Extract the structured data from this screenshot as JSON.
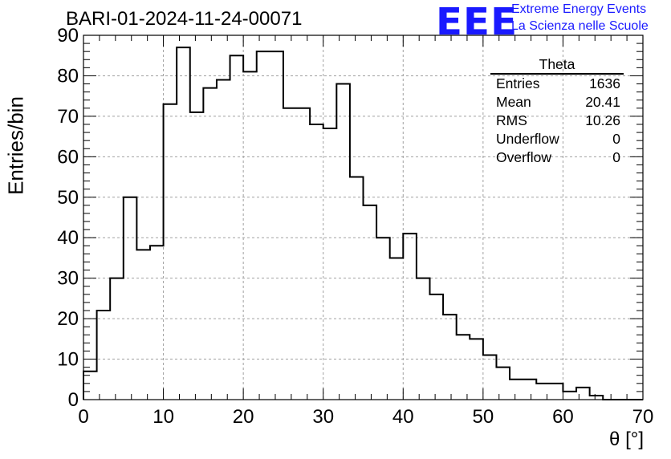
{
  "header": {
    "run_title": "BARI-01-2024-11-24-00071",
    "logo_text": "EEE",
    "logo_line1": "Extreme Energy Events",
    "logo_line2": "La Scienza nelle Scuole",
    "logo_color": "#1a1aff"
  },
  "stats": {
    "title": "Theta",
    "rows": [
      {
        "label": "Entries",
        "value": "1636"
      },
      {
        "label": "Mean",
        "value": "20.41"
      },
      {
        "label": "RMS",
        "value": "10.26"
      },
      {
        "label": "Underflow",
        "value": "0"
      },
      {
        "label": "Overflow",
        "value": "0"
      }
    ]
  },
  "chart_data": {
    "type": "bar",
    "title": "BARI-01-2024-11-24-00071",
    "xlabel": "θ [°]",
    "ylabel": "Entries/bin",
    "xlim": [
      0,
      70
    ],
    "ylim": [
      0,
      90
    ],
    "bin_width": 1.6667,
    "bin_edges_start": 0,
    "values": [
      7,
      22,
      30,
      50,
      37,
      38,
      73,
      87,
      71,
      77,
      79,
      85,
      81,
      86,
      86,
      72,
      72,
      68,
      67,
      78,
      55,
      48,
      40,
      35,
      41,
      30,
      26,
      21,
      16,
      15,
      11,
      8,
      5,
      5,
      4,
      4,
      2,
      3,
      1,
      0,
      0,
      0
    ],
    "x_ticks": [
      "0",
      "10",
      "20",
      "30",
      "40",
      "50",
      "60",
      "70"
    ],
    "y_ticks": [
      "0",
      "10",
      "20",
      "30",
      "40",
      "50",
      "60",
      "70",
      "80",
      "90"
    ],
    "grid": true,
    "grid_style": "dashed",
    "line_color": "#000000"
  }
}
